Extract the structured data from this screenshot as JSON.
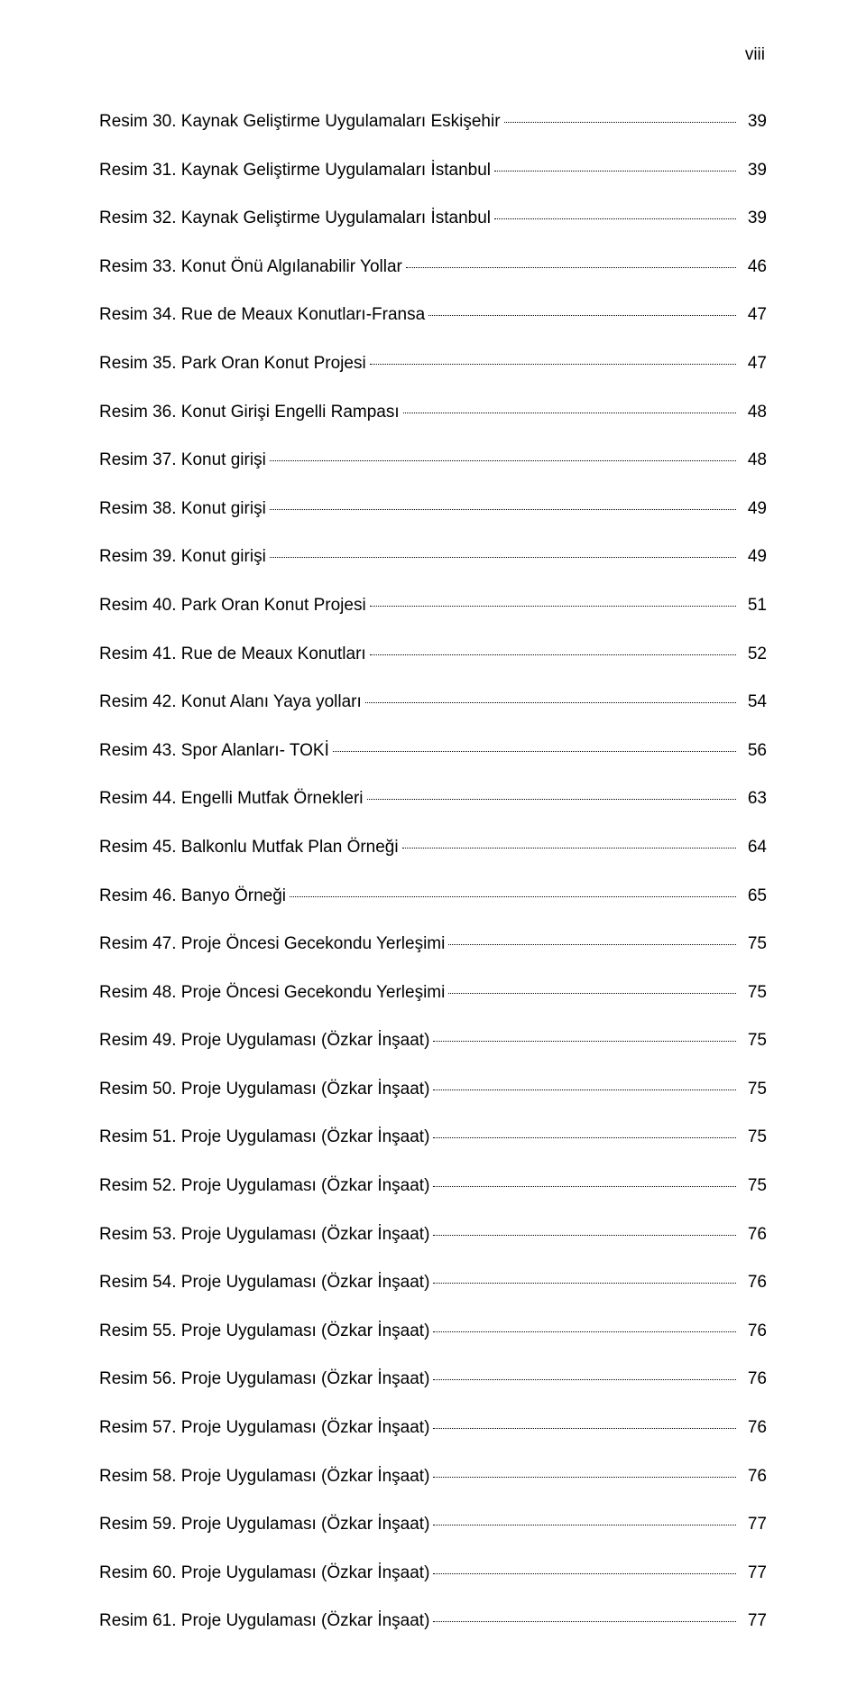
{
  "page_numeral": "viii",
  "entries": [
    {
      "label": "Resim 30. Kaynak Geliştirme Uygulamaları Eskişehir",
      "page": "39"
    },
    {
      "label": "Resim 31. Kaynak Geliştirme Uygulamaları İstanbul",
      "page": "39"
    },
    {
      "label": "Resim 32. Kaynak Geliştirme Uygulamaları İstanbul",
      "page": "39"
    },
    {
      "label": "Resim 33. Konut Önü Algılanabilir Yollar",
      "page": "46"
    },
    {
      "label": "Resim 34. Rue de Meaux Konutları-Fransa",
      "page": "47"
    },
    {
      "label": "Resim 35. Park Oran Konut Projesi",
      "page": "47"
    },
    {
      "label": "Resim 36. Konut Girişi Engelli Rampası",
      "page": "48"
    },
    {
      "label": "Resim 37. Konut girişi",
      "page": "48"
    },
    {
      "label": "Resim 38. Konut girişi",
      "page": "49"
    },
    {
      "label": "Resim 39. Konut girişi",
      "page": "49"
    },
    {
      "label": "Resim 40. Park Oran Konut Projesi",
      "page": "51"
    },
    {
      "label": "Resim 41. Rue de Meaux Konutları",
      "page": "52"
    },
    {
      "label": "Resim 42. Konut Alanı Yaya yolları",
      "page": "54"
    },
    {
      "label": "Resim 43. Spor Alanları- TOKİ",
      "page": "56"
    },
    {
      "label": "Resim 44. Engelli Mutfak Örnekleri",
      "page": "63"
    },
    {
      "label": "Resim 45. Balkonlu Mutfak Plan Örneği",
      "page": "64"
    },
    {
      "label": "Resim 46. Banyo Örneği",
      "page": "65"
    },
    {
      "label": "Resim 47. Proje Öncesi Gecekondu Yerleşimi",
      "page": "75"
    },
    {
      "label": "Resim 48. Proje Öncesi Gecekondu Yerleşimi",
      "page": "75"
    },
    {
      "label": "Resim 49. Proje Uygulaması (Özkar İnşaat)",
      "page": "75"
    },
    {
      "label": "Resim 50. Proje Uygulaması (Özkar İnşaat)",
      "page": "75"
    },
    {
      "label": "Resim 51. Proje Uygulaması (Özkar İnşaat)",
      "page": "75"
    },
    {
      "label": "Resim 52. Proje Uygulaması (Özkar İnşaat)",
      "page": "75"
    },
    {
      "label": "Resim 53. Proje Uygulaması (Özkar İnşaat)",
      "page": "76"
    },
    {
      "label": "Resim 54. Proje Uygulaması (Özkar İnşaat)",
      "page": "76"
    },
    {
      "label": "Resim 55. Proje Uygulaması (Özkar İnşaat)",
      "page": "76"
    },
    {
      "label": "Resim 56. Proje Uygulaması (Özkar İnşaat)",
      "page": "76"
    },
    {
      "label": "Resim 57. Proje Uygulaması (Özkar İnşaat)",
      "page": "76"
    },
    {
      "label": "Resim 58. Proje Uygulaması (Özkar İnşaat)",
      "page": "76"
    },
    {
      "label": "Resim 59. Proje Uygulaması (Özkar İnşaat)",
      "page": "77"
    },
    {
      "label": "Resim 60. Proje Uygulaması (Özkar İnşaat)",
      "page": "77"
    },
    {
      "label": "Resim 61. Proje Uygulaması (Özkar İnşaat)",
      "page": "77"
    }
  ]
}
